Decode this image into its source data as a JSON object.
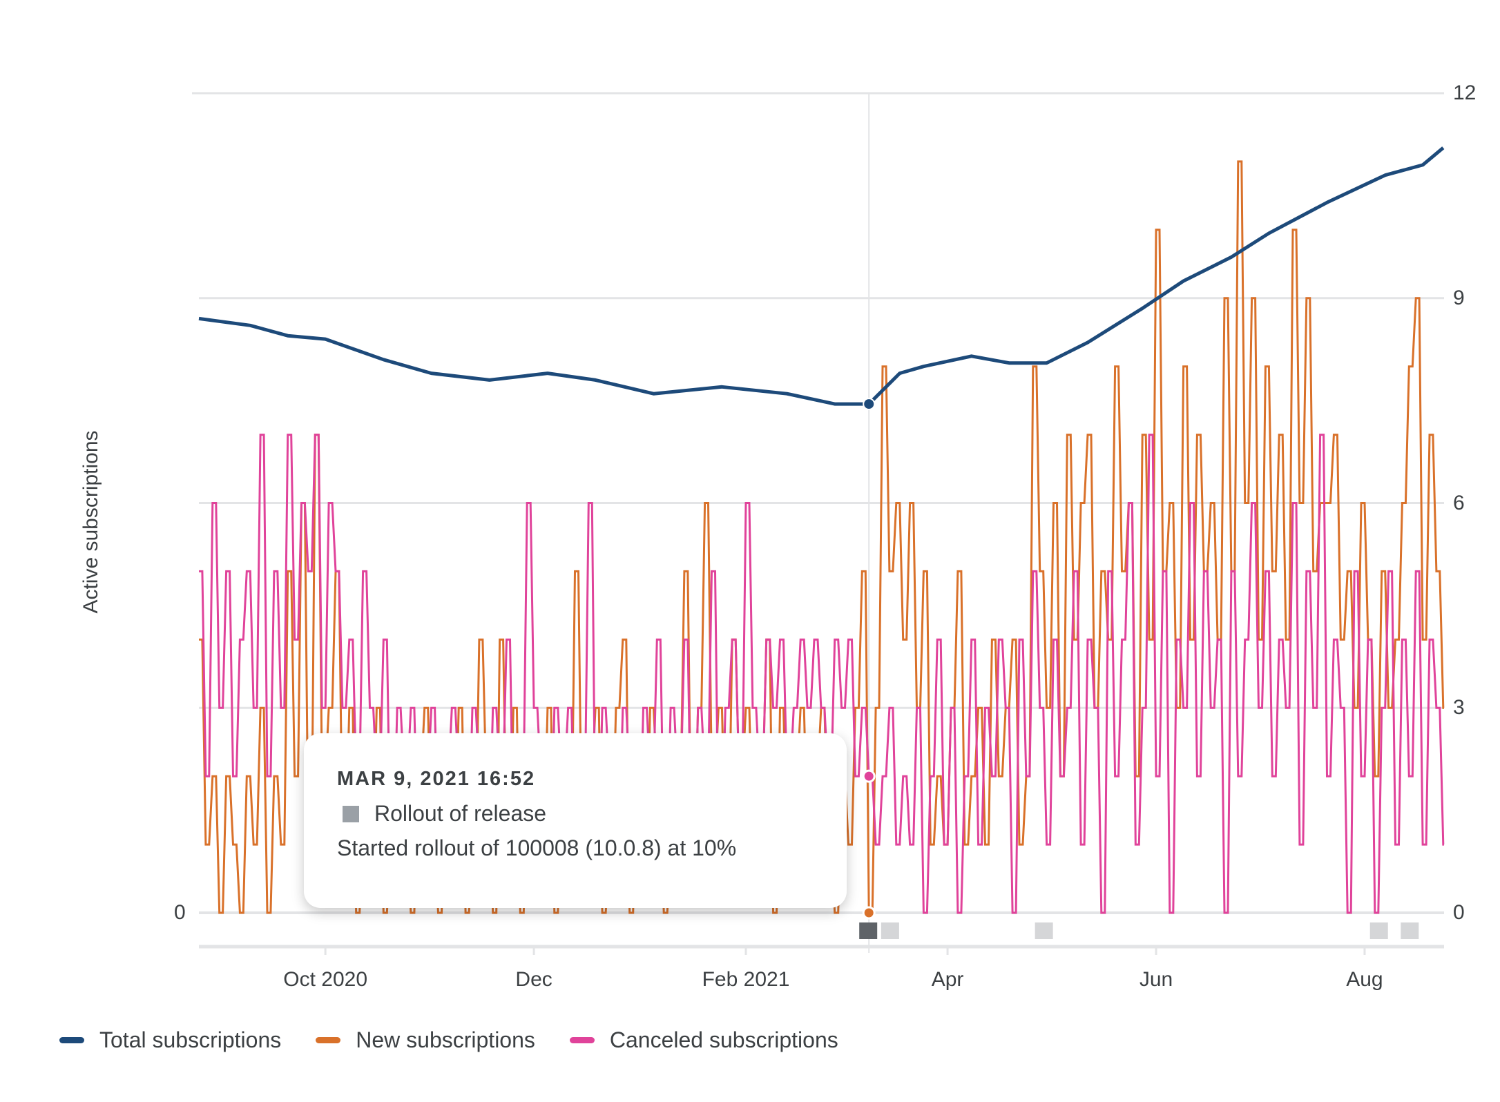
{
  "chart_data": {
    "type": "line",
    "ylabel": "Active subscriptions",
    "left_axis": {
      "ticks": [
        "0"
      ]
    },
    "right_axis": {
      "ticks": [
        "0",
        "3",
        "6",
        "9",
        "12"
      ],
      "ylim": [
        0,
        12
      ]
    },
    "x_range": [
      "2020-08-25",
      "2021-08-24"
    ],
    "x_ticks": [
      {
        "date": "2020-10-01",
        "label": "Oct 2020"
      },
      {
        "date": "2020-12-01",
        "label": "Dec"
      },
      {
        "date": "2021-02-01",
        "label": "Feb 2021"
      },
      {
        "date": "2021-04-01",
        "label": "Apr"
      },
      {
        "date": "2021-06-01",
        "label": "Jun"
      },
      {
        "date": "2021-08-01",
        "label": "Aug"
      }
    ],
    "grid": true,
    "legend_position": "bottom-left",
    "series": [
      {
        "name": "Total subscriptions",
        "color": "#1d4a7a",
        "points": [
          [
            "2020-08-25",
            8.7
          ],
          [
            "2020-09-09",
            8.6
          ],
          [
            "2020-09-20",
            8.45
          ],
          [
            "2020-10-01",
            8.4
          ],
          [
            "2020-10-18",
            8.1
          ],
          [
            "2020-11-01",
            7.9
          ],
          [
            "2020-11-18",
            7.8
          ],
          [
            "2020-12-05",
            7.9
          ],
          [
            "2020-12-19",
            7.8
          ],
          [
            "2021-01-05",
            7.6
          ],
          [
            "2021-01-25",
            7.7
          ],
          [
            "2021-02-13",
            7.6
          ],
          [
            "2021-02-27",
            7.45
          ],
          [
            "2021-03-09",
            7.45
          ],
          [
            "2021-03-18",
            7.9
          ],
          [
            "2021-03-25",
            8.0
          ],
          [
            "2021-04-08",
            8.15
          ],
          [
            "2021-04-19",
            8.05
          ],
          [
            "2021-04-30",
            8.05
          ],
          [
            "2021-05-12",
            8.35
          ],
          [
            "2021-05-28",
            8.85
          ],
          [
            "2021-06-09",
            9.25
          ],
          [
            "2021-06-23",
            9.6
          ],
          [
            "2021-07-04",
            9.95
          ],
          [
            "2021-07-21",
            10.4
          ],
          [
            "2021-08-07",
            10.8
          ],
          [
            "2021-08-18",
            10.95
          ],
          [
            "2021-08-24",
            11.2
          ]
        ]
      },
      {
        "name": "New subscriptions",
        "color": "#d9712a",
        "start": "2020-08-25",
        "interval_days": 2,
        "values": [
          4,
          1,
          2,
          0,
          2,
          1,
          0,
          2,
          1,
          3,
          0,
          2,
          1,
          5,
          2,
          6,
          1,
          7,
          2,
          3,
          5,
          1,
          3,
          0,
          2,
          1,
          3,
          0,
          1,
          2,
          1,
          0,
          2,
          3,
          1,
          0,
          2,
          1,
          3,
          0,
          1,
          4,
          2,
          0,
          4,
          1,
          3,
          0,
          2,
          1,
          1,
          3,
          0,
          2,
          1,
          5,
          1,
          2,
          3,
          0,
          1,
          3,
          4,
          0,
          2,
          1,
          3,
          2,
          0,
          1,
          2,
          5,
          1,
          3,
          6,
          2,
          3,
          1,
          4,
          2,
          3,
          1,
          2,
          4,
          0,
          3,
          1,
          2,
          3,
          1,
          2,
          3,
          1,
          0,
          2,
          1,
          3,
          5,
          0,
          3,
          8,
          5,
          6,
          4,
          6,
          3,
          5,
          1,
          2,
          1,
          3,
          5,
          1,
          2,
          3,
          1,
          4,
          2,
          3,
          4,
          1,
          2,
          8,
          5,
          3,
          6,
          2,
          7,
          4,
          6,
          7,
          3,
          5,
          4,
          8,
          5,
          6,
          2,
          7,
          4,
          10,
          5,
          6,
          3,
          8,
          4,
          7,
          5,
          6,
          4,
          9,
          5,
          11,
          6,
          9,
          4,
          8,
          5,
          7,
          4,
          10,
          6,
          9,
          5,
          6,
          6,
          7,
          4,
          5,
          3,
          6,
          4,
          2,
          5,
          3,
          4,
          6,
          8,
          9,
          4,
          7,
          5,
          3
        ]
      },
      {
        "name": "Canceled subscriptions",
        "color": "#e0439a",
        "start": "2020-08-25",
        "interval_days": 2,
        "values": [
          5,
          2,
          6,
          3,
          5,
          2,
          4,
          5,
          3,
          7,
          2,
          5,
          3,
          7,
          4,
          6,
          5,
          7,
          3,
          6,
          5,
          3,
          4,
          2,
          5,
          3,
          2,
          4,
          1,
          3,
          2,
          3,
          1,
          2,
          3,
          1,
          2,
          3,
          2,
          1,
          3,
          2,
          1,
          3,
          2,
          4,
          1,
          2,
          6,
          3,
          2,
          1,
          3,
          2,
          3,
          1,
          2,
          6,
          1,
          3,
          2,
          1,
          3,
          2,
          1,
          3,
          2,
          4,
          1,
          3,
          2,
          4,
          1,
          3,
          2,
          5,
          1,
          3,
          4,
          2,
          6,
          3,
          2,
          4,
          3,
          4,
          2,
          3,
          4,
          3,
          4,
          3,
          2,
          4,
          3,
          4,
          2,
          3,
          2,
          1,
          2,
          3,
          1,
          2,
          1,
          3,
          0,
          2,
          4,
          1,
          3,
          0,
          2,
          4,
          1,
          3,
          2,
          4,
          3,
          0,
          4,
          2,
          5,
          3,
          1,
          4,
          2,
          3,
          5,
          1,
          4,
          3,
          0,
          5,
          2,
          4,
          6,
          1,
          3,
          7,
          2,
          5,
          0,
          4,
          3,
          6,
          2,
          5,
          3,
          4,
          0,
          5,
          2,
          4,
          6,
          3,
          5,
          2,
          4,
          3,
          6,
          1,
          5,
          3,
          7,
          2,
          4,
          3,
          0,
          5,
          2,
          4,
          0,
          3,
          5,
          1,
          4,
          2,
          5,
          1,
          4,
          3,
          1
        ]
      }
    ],
    "annotations": {
      "selected_color": "#5f6368",
      "color": "#d5d6d8",
      "dates": [
        "2021-03-09",
        "2021-03-15",
        "2021-04-29",
        "2021-08-05",
        "2021-08-14"
      ],
      "selected_date": "2021-03-09"
    },
    "hover": {
      "date": "2021-03-09",
      "total": 7.45,
      "new": 0,
      "canceled": 2
    }
  },
  "tooltip": {
    "title": "MAR 9, 2021 16:52",
    "event_label": "Rollout of release",
    "event_color": "#9aa0a6",
    "description": "Started rollout of 100008 (10.0.8) at 10%"
  },
  "legend": [
    {
      "label": "Total subscriptions",
      "color": "#1d4a7a"
    },
    {
      "label": "New subscriptions",
      "color": "#d9712a"
    },
    {
      "label": "Canceled subscriptions",
      "color": "#e0439a"
    }
  ]
}
